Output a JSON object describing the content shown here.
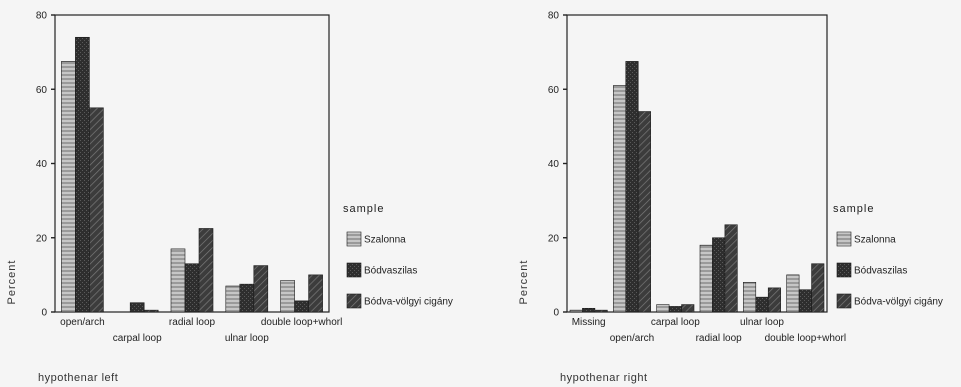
{
  "chart_data": [
    {
      "type": "bar",
      "caption": "hypothenar left",
      "ylabel": "Percent",
      "xlabel": "",
      "ylim": [
        0,
        80
      ],
      "yticks": [
        0,
        20,
        40,
        60,
        80
      ],
      "categories": [
        "open/arch",
        "carpal loop",
        "radial loop",
        "ulnar loop",
        "double loop+whorl"
      ],
      "series": [
        {
          "name": "Szalonna",
          "values": [
            67.5,
            0,
            17,
            7,
            8.5
          ]
        },
        {
          "name": "Bódvaszilas",
          "values": [
            74,
            2.5,
            13,
            7.5,
            3
          ]
        },
        {
          "name": "Bódva-völgyi cigány",
          "values": [
            55,
            0.5,
            22.5,
            12.5,
            10
          ]
        }
      ],
      "legend": {
        "title": "sample",
        "placement": "right"
      }
    },
    {
      "type": "bar",
      "caption": "hypothenar right",
      "ylabel": "Percent",
      "xlabel": "",
      "ylim": [
        0,
        80
      ],
      "yticks": [
        0,
        20,
        40,
        60,
        80
      ],
      "categories": [
        "Missing",
        "open/arch",
        "carpal loop",
        "radial loop",
        "ulnar loop",
        "double loop+whorl"
      ],
      "series": [
        {
          "name": "Szalonna",
          "values": [
            0.5,
            61,
            2,
            18,
            8,
            10
          ]
        },
        {
          "name": "Bódvaszilas",
          "values": [
            1,
            67.5,
            1.5,
            20,
            4,
            6
          ]
        },
        {
          "name": "Bódva-völgyi cigány",
          "values": [
            0.5,
            54,
            2,
            23.5,
            6.5,
            13
          ]
        }
      ],
      "legend": {
        "title": "sample",
        "placement": "right"
      }
    }
  ]
}
